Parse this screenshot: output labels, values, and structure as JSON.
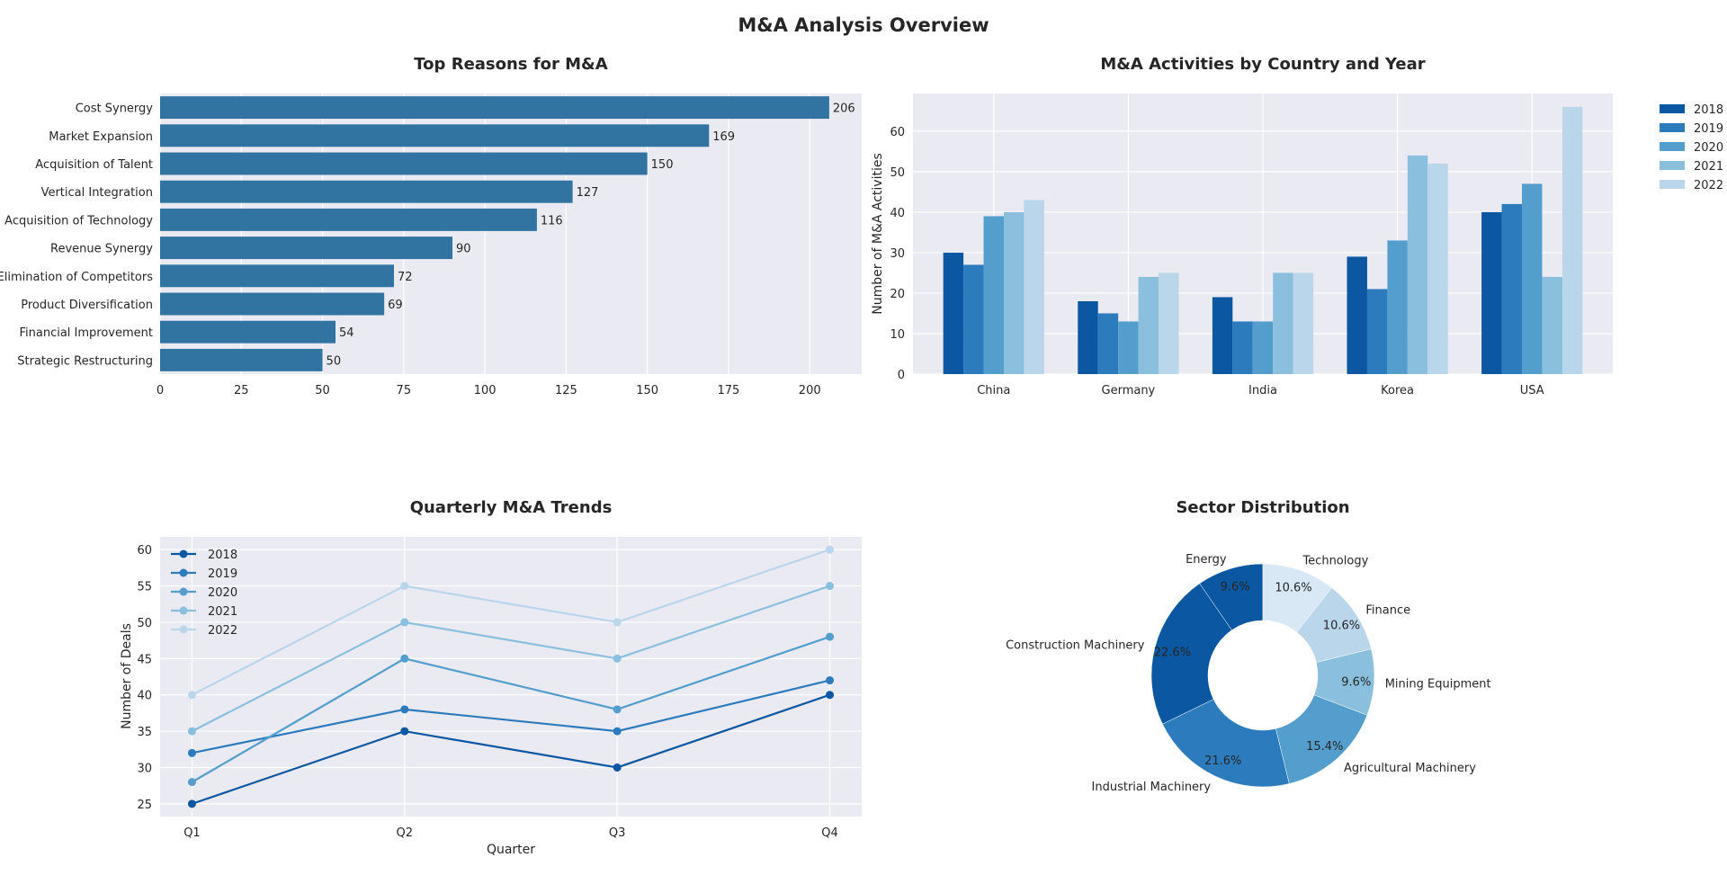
{
  "title": "M&A Analysis Overview",
  "chart_data": [
    {
      "type": "bar",
      "orientation": "horizontal",
      "title": "Top Reasons for M&A",
      "xlabel": "",
      "ylabel": "",
      "categories": [
        "Cost Synergy",
        "Market Expansion",
        "Acquisition of Talent",
        "Vertical Integration",
        "Acquisition of Technology",
        "Revenue Synergy",
        "Elimination of Competitors",
        "Product Diversification",
        "Financial Improvement",
        "Strategic Restructuring"
      ],
      "values": [
        206,
        169,
        150,
        127,
        116,
        90,
        72,
        69,
        54,
        50
      ],
      "xlim": [
        0,
        216
      ],
      "xticks": [
        0,
        25,
        50,
        75,
        100,
        125,
        150,
        175,
        200
      ],
      "grid": true,
      "color": "#3274a1"
    },
    {
      "type": "bar",
      "title": "M&A Activities by Country and Year",
      "xlabel": "",
      "ylabel": "Number of M&A Activities",
      "categories": [
        "China",
        "Germany",
        "India",
        "Korea",
        "USA"
      ],
      "series": [
        {
          "name": "2018",
          "values": [
            30,
            18,
            19,
            29,
            40
          ],
          "color": "#0b57a1"
        },
        {
          "name": "2019",
          "values": [
            27,
            15,
            13,
            21,
            42
          ],
          "color": "#2c7bbc"
        },
        {
          "name": "2020",
          "values": [
            39,
            13,
            13,
            33,
            47
          ],
          "color": "#539ecd"
        },
        {
          "name": "2021",
          "values": [
            40,
            24,
            25,
            54,
            24
          ],
          "color": "#8abfdd"
        },
        {
          "name": "2022",
          "values": [
            43,
            25,
            25,
            52,
            66
          ],
          "color": "#bad6eb"
        }
      ],
      "ylim": [
        0,
        69.3
      ],
      "yticks": [
        0,
        10,
        20,
        30,
        40,
        50,
        60
      ],
      "legend": "outside-right",
      "grid": true
    },
    {
      "type": "line",
      "title": "Quarterly M&A Trends",
      "xlabel": "Quarter",
      "ylabel": "Number of Deals",
      "x": [
        "Q1",
        "Q2",
        "Q3",
        "Q4"
      ],
      "series": [
        {
          "name": "2018",
          "values": [
            25,
            35,
            30,
            40
          ],
          "color": "#0b57a1"
        },
        {
          "name": "2019",
          "values": [
            32,
            38,
            35,
            42
          ],
          "color": "#2c7bbc"
        },
        {
          "name": "2020",
          "values": [
            28,
            45,
            38,
            48
          ],
          "color": "#539ecd"
        },
        {
          "name": "2021",
          "values": [
            35,
            50,
            45,
            55
          ],
          "color": "#8abfdd"
        },
        {
          "name": "2022",
          "values": [
            40,
            55,
            50,
            60
          ],
          "color": "#bad6eb"
        }
      ],
      "ylim": [
        23.25,
        61.75
      ],
      "yticks": [
        25,
        30,
        35,
        40,
        45,
        50,
        55,
        60
      ],
      "legend": "upper-left",
      "grid": true
    },
    {
      "type": "pie",
      "style": "donut",
      "title": "Sector Distribution",
      "labels": [
        "Energy",
        "Construction Machinery",
        "Industrial Machinery",
        "Agricultural Machinery",
        "Mining Equipment",
        "Finance",
        "Technology"
      ],
      "values": [
        9.6,
        22.6,
        21.6,
        15.4,
        9.6,
        10.6,
        10.6
      ],
      "pct_labels": [
        "9.6%",
        "22.6%",
        "21.6%",
        "15.4%",
        "9.6%",
        "10.6%",
        "10.6%"
      ],
      "colors": [
        "#0b57a1",
        "#0b57a1",
        "#2c7bbc",
        "#539ecd",
        "#8abfdd",
        "#bad6eb",
        "#d9e8f5"
      ],
      "start_angle": 90,
      "direction": "counterclockwise"
    }
  ]
}
